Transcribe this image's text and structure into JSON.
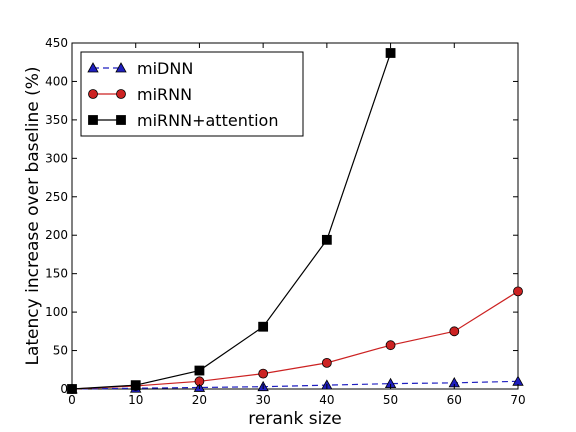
{
  "chart_data": {
    "type": "line",
    "title": "",
    "xlabel": "rerank size",
    "ylabel": "Latency increase over baseline (%)",
    "xlim": [
      0,
      70
    ],
    "ylim": [
      0,
      450
    ],
    "xticks": [
      "0",
      "10",
      "20",
      "30",
      "40",
      "50",
      "60",
      "70"
    ],
    "yticks": [
      "0",
      "50",
      "100",
      "150",
      "200",
      "250",
      "300",
      "350",
      "400",
      "450"
    ],
    "grid": false,
    "legend_position": "top-left",
    "series": [
      {
        "name": "miDNN",
        "color": "#1f1fbf",
        "marker": "triangle",
        "line_style": "dashed",
        "x": [
          0,
          10,
          20,
          30,
          40,
          50,
          60,
          70
        ],
        "y": [
          0,
          1,
          2,
          3,
          5,
          7,
          8,
          10
        ]
      },
      {
        "name": "miRNN",
        "color": "#cc2222",
        "marker": "circle",
        "line_style": "solid",
        "x": [
          0,
          10,
          20,
          30,
          40,
          50,
          60,
          70
        ],
        "y": [
          0,
          4,
          10,
          20,
          34,
          57,
          75,
          127
        ]
      },
      {
        "name": "miRNN+attention",
        "color": "#000000",
        "marker": "square",
        "line_style": "solid",
        "x": [
          0,
          10,
          20,
          30,
          40,
          50
        ],
        "y": [
          0,
          5,
          24,
          81,
          194,
          437
        ]
      }
    ]
  }
}
